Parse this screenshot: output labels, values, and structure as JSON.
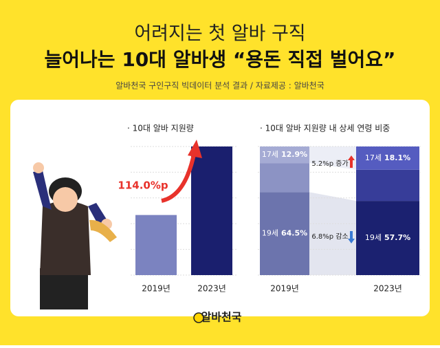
{
  "header": {
    "title_line1": "어려지는 첫 알바 구직",
    "title_line2": "늘어나는 10대 알바생 “용돈 직접 벌어요”",
    "source": "알바천국 구인구직 빅데이터 분석 결과 / 자료제공 : 알바천국"
  },
  "chart_data": [
    {
      "type": "bar",
      "title": "· 10대 알바 지원량",
      "categories": [
        "2019년",
        "2023년"
      ],
      "values": [
        100,
        214
      ],
      "colors": [
        "#7b83c0",
        "#1a1f6e"
      ],
      "ylim": [
        0,
        214
      ],
      "annotation": "114.0%p",
      "annotation_color": "#e8322b"
    },
    {
      "type": "stacked_bar",
      "title": "· 10대 알바 지원량 내 상세 연령 비중",
      "categories": [
        "2019년",
        "2023년"
      ],
      "ylim": [
        0,
        100
      ],
      "series": [
        {
          "name": "19세",
          "values": [
            64.5,
            57.7
          ],
          "value_labels": [
            "64.5%",
            "57.7%"
          ],
          "colors": [
            "#6c74ad",
            "#1b2170"
          ]
        },
        {
          "name": null,
          "values": [
            22.6,
            24.2
          ],
          "colors": [
            "#8c93c4",
            "#373d99"
          ]
        },
        {
          "name": "17세",
          "values": [
            12.9,
            18.1
          ],
          "value_labels": [
            "12.9%",
            "18.1%"
          ],
          "colors": [
            "#a5abd4",
            "#555cc0"
          ]
        }
      ],
      "annotations": [
        "5.2%p 증가",
        "6.8%p 감소"
      ]
    }
  ],
  "footer": {
    "logo": "알바천국"
  }
}
